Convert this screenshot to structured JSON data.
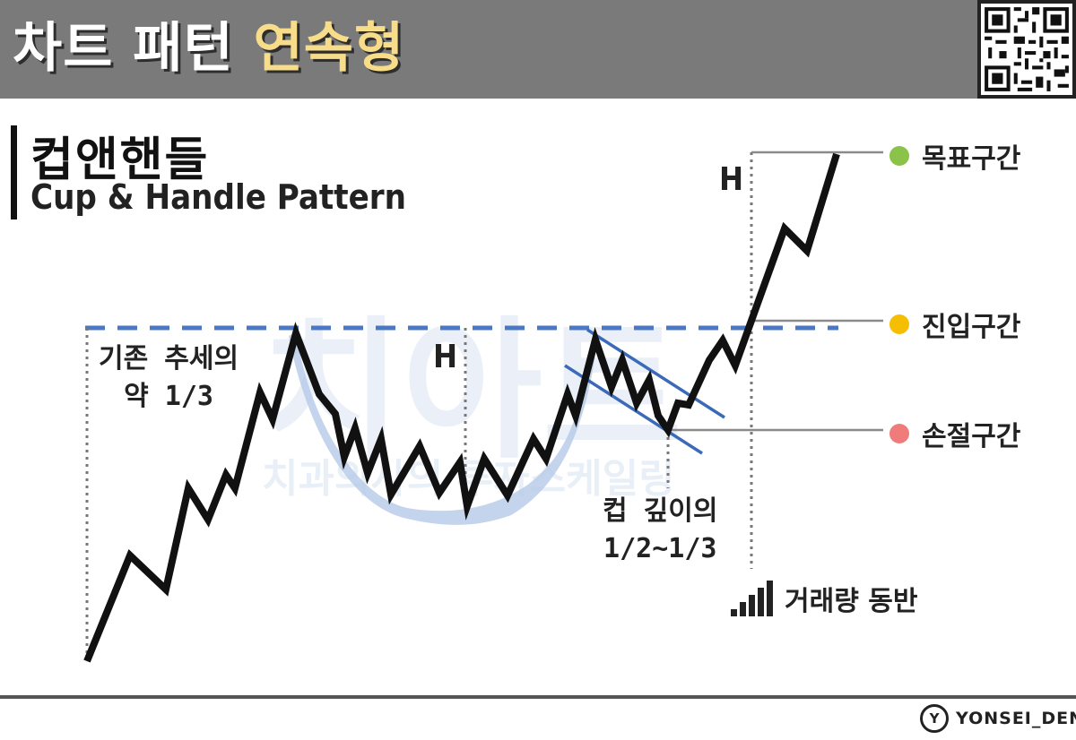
{
  "header": {
    "title_main": "차트 패턴",
    "title_highlight": "연속형"
  },
  "section": {
    "title": "컵앤핸들",
    "subtitle": "Cup & Handle Pattern"
  },
  "annotations": {
    "prior_trend": [
      "기존 추세의",
      "약 1/3"
    ],
    "cup_depth": [
      "컵 깊이의",
      "1/2~1/3"
    ],
    "cup_height_mark": "H",
    "target_height_mark": "H"
  },
  "zones": [
    {
      "label": "목표구간",
      "color": "#8ac24a"
    },
    {
      "label": "진입구간",
      "color": "#f5be00"
    },
    {
      "label": "손절구간",
      "color": "#ef7b7b"
    }
  ],
  "volume_label": "거래량 동반",
  "watermark": {
    "big": "치아트",
    "small": "치과의사의 투자스케일링"
  },
  "brand": {
    "name": "YONSEI_DENT",
    "logo_glyph": "Y"
  },
  "colors": {
    "resistance": "#4a78c4",
    "cup_shade": "#b9cde9",
    "price_line": "#111111",
    "handle_channel": "#3a6ab8"
  },
  "icons": [
    "qr-code-icon",
    "volume-bars-icon",
    "brand-logo-icon"
  ]
}
